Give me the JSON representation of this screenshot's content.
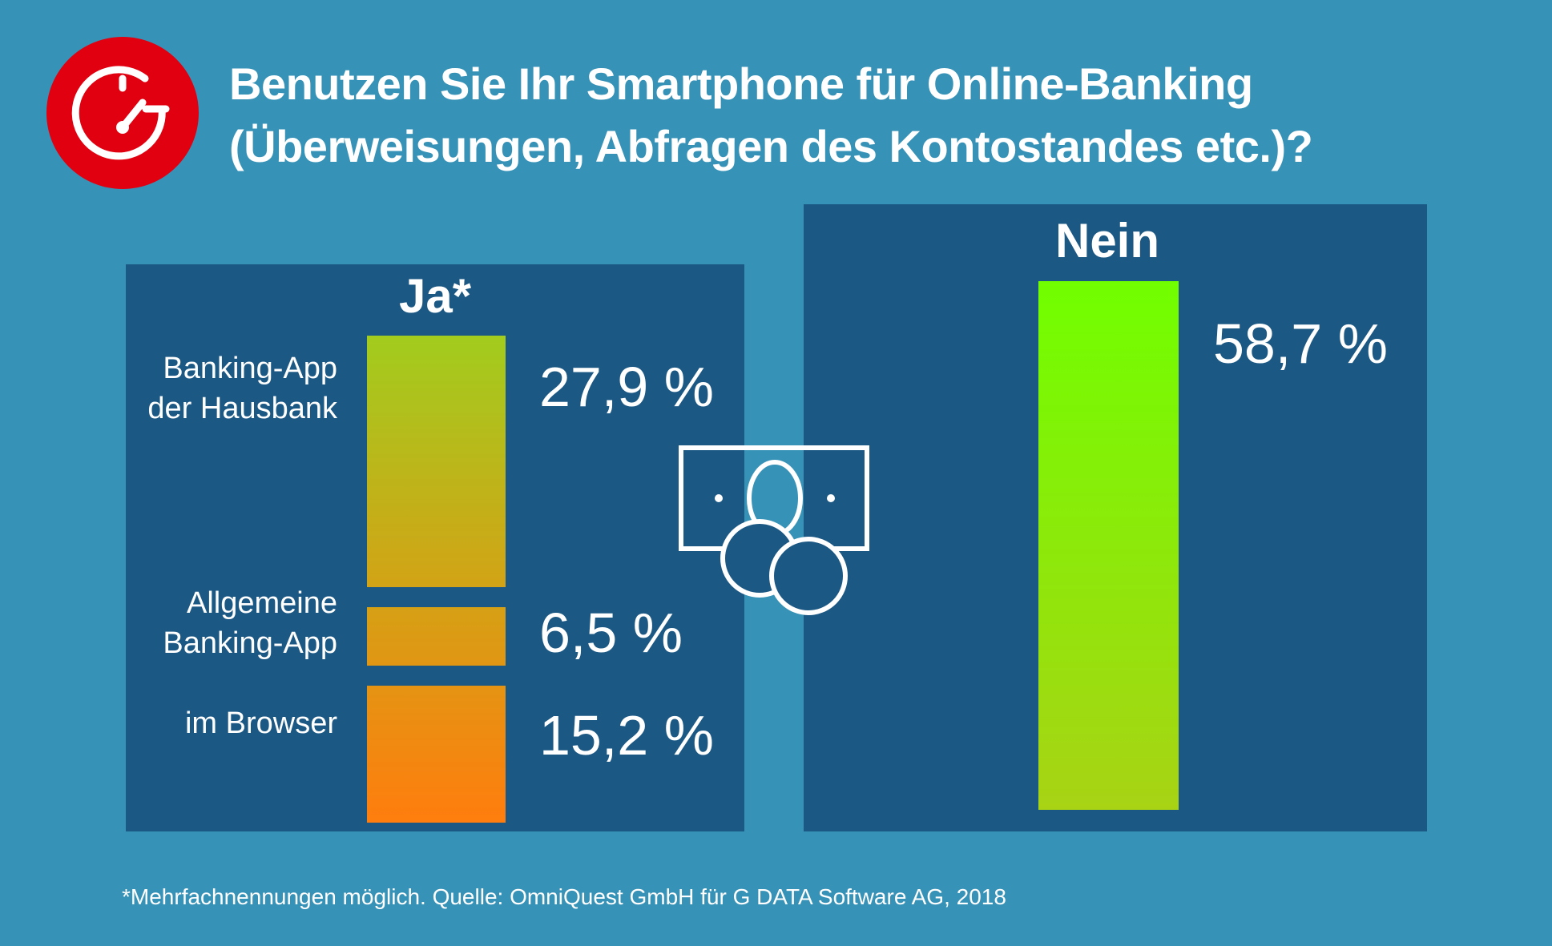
{
  "title_line1": "Benutzen Sie Ihr Smartphone für Online-Banking",
  "title_line2": "(Überweisungen, Abfragen des Kontostandes etc.)?",
  "logo_icon": "speedometer-icon",
  "center_icon": "money-bill-coins-icon",
  "colors": {
    "background": "#3792b7",
    "panel": "#1c5884",
    "logo": "#e1000f",
    "ja_top": "#a2cc1e",
    "ja_bottom": "#ff7d0e",
    "nein_top": "#71ff00",
    "nein_bottom": "#a8d314"
  },
  "footnote": "*Mehrfachnennungen möglich. Quelle: OmniQuest GmbH für G DATA Software AG, 2018",
  "chart_data": {
    "type": "bar",
    "title": "Benutzen Sie Ihr Smartphone für Online-Banking (Überweisungen, Abfragen des Kontostandes etc.)?",
    "groups": [
      {
        "name": "Ja*",
        "categories": [
          "Banking-App\nder Hausbank",
          "Allgemeine\nBanking-App",
          "im Browser"
        ],
        "values": [
          27.9,
          6.5,
          15.2
        ],
        "labels": [
          "27,9 %",
          "6,5 %",
          "15,2 %"
        ]
      },
      {
        "name": "Nein",
        "categories": [
          ""
        ],
        "values": [
          58.7
        ],
        "labels": [
          "58,7 %"
        ]
      }
    ],
    "unit": "%"
  }
}
